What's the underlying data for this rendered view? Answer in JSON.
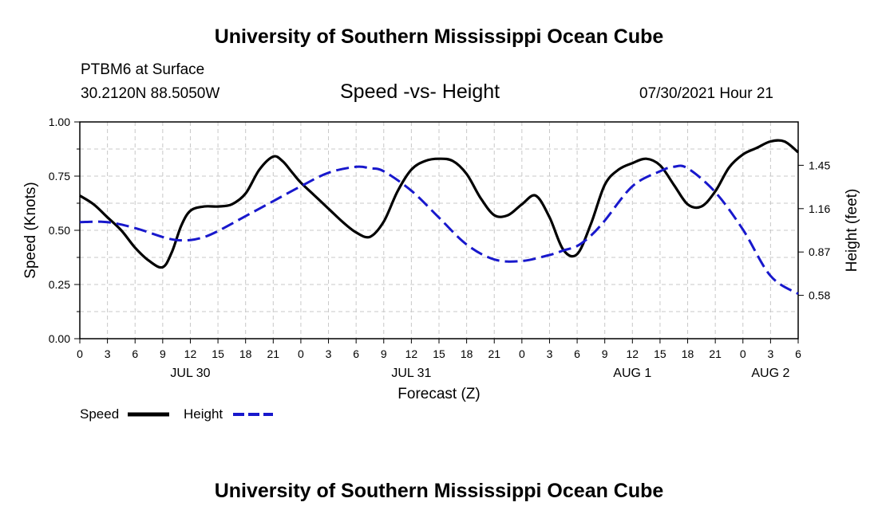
{
  "header": {
    "title_top": "University of Southern Mississippi Ocean Cube",
    "station": "PTBM6 at Surface",
    "coords": "30.2120N  88.5050W",
    "chart_title": "Speed -vs- Height",
    "datetime": "07/30/2021 Hour 21"
  },
  "footer": {
    "title_bottom": "University of Southern Mississippi Ocean Cube"
  },
  "legend": {
    "speed_label": "Speed",
    "height_label": "Height"
  },
  "colors": {
    "speed": "#000000",
    "height": "#1818cc",
    "grid": "#c8c8c8"
  },
  "chart_data": {
    "type": "line",
    "title": "Speed -vs- Height",
    "xlabel": "Forecast (Z)",
    "ylabel": "Speed (Knots)",
    "ylabel_right": "Height (feet)",
    "x_range_hours": [
      0,
      78
    ],
    "xtick_labels": [
      "0",
      "3",
      "6",
      "9",
      "12",
      "15",
      "18",
      "21",
      "0",
      "3",
      "6",
      "9",
      "12",
      "15",
      "18",
      "21",
      "0",
      "3",
      "6",
      "9",
      "12",
      "15",
      "18",
      "21",
      "0",
      "3",
      "6"
    ],
    "date_labels": [
      {
        "hour": 12,
        "label": "JUL 30"
      },
      {
        "hour": 36,
        "label": "JUL 31"
      },
      {
        "hour": 60,
        "label": "AUG 1"
      },
      {
        "hour": 75,
        "label": "AUG 2"
      }
    ],
    "ylim": [
      0,
      1
    ],
    "yticks": [
      "0.00",
      "0.25",
      "0.50",
      "0.75",
      "1.00"
    ],
    "ylim_right": [
      0.29,
      1.74
    ],
    "yticks_right": [
      "0.58",
      "0.87",
      "1.16",
      "1.45"
    ],
    "series": [
      {
        "name": "Speed",
        "axis": "left",
        "style": "solid",
        "x": [
          0,
          1.5,
          3,
          4.5,
          6,
          7.5,
          9,
          10,
          11,
          12,
          13.5,
          15,
          16.5,
          18,
          19.5,
          21,
          22,
          23,
          24,
          25.5,
          27,
          28.5,
          30,
          31.5,
          33,
          34.5,
          36,
          37.5,
          39,
          40.5,
          42,
          43.5,
          45,
          46.5,
          48,
          49.5,
          51,
          52.5,
          54,
          55.5,
          57,
          58.5,
          60,
          61.5,
          63,
          64.5,
          66,
          67.5,
          69,
          70.5,
          72,
          73.5,
          75,
          76.5,
          78
        ],
        "values": [
          0.66,
          0.62,
          0.56,
          0.5,
          0.42,
          0.36,
          0.33,
          0.4,
          0.52,
          0.59,
          0.61,
          0.61,
          0.62,
          0.67,
          0.78,
          0.84,
          0.82,
          0.77,
          0.72,
          0.66,
          0.6,
          0.54,
          0.49,
          0.47,
          0.54,
          0.68,
          0.78,
          0.82,
          0.83,
          0.82,
          0.76,
          0.65,
          0.57,
          0.57,
          0.62,
          0.66,
          0.56,
          0.41,
          0.39,
          0.53,
          0.71,
          0.78,
          0.81,
          0.83,
          0.8,
          0.71,
          0.62,
          0.61,
          0.68,
          0.79,
          0.85,
          0.88,
          0.91,
          0.91,
          0.86
        ]
      },
      {
        "name": "Height",
        "axis": "right",
        "style": "dashed",
        "x": [
          0,
          3,
          6,
          9,
          10.5,
          12,
          13.5,
          15,
          18,
          21,
          24,
          27,
          30,
          31.5,
          33,
          36,
          39,
          42,
          45,
          48,
          51,
          52.5,
          54,
          55.5,
          57,
          60,
          63,
          64.5,
          66,
          69,
          72,
          75,
          78
        ],
        "values": [
          1.07,
          1.07,
          1.03,
          0.97,
          0.95,
          0.95,
          0.97,
          1.01,
          1.11,
          1.21,
          1.31,
          1.4,
          1.44,
          1.43,
          1.41,
          1.28,
          1.1,
          0.92,
          0.82,
          0.81,
          0.85,
          0.88,
          0.91,
          0.98,
          1.08,
          1.31,
          1.41,
          1.44,
          1.43,
          1.27,
          1.02,
          0.71,
          0.59
        ]
      }
    ]
  }
}
